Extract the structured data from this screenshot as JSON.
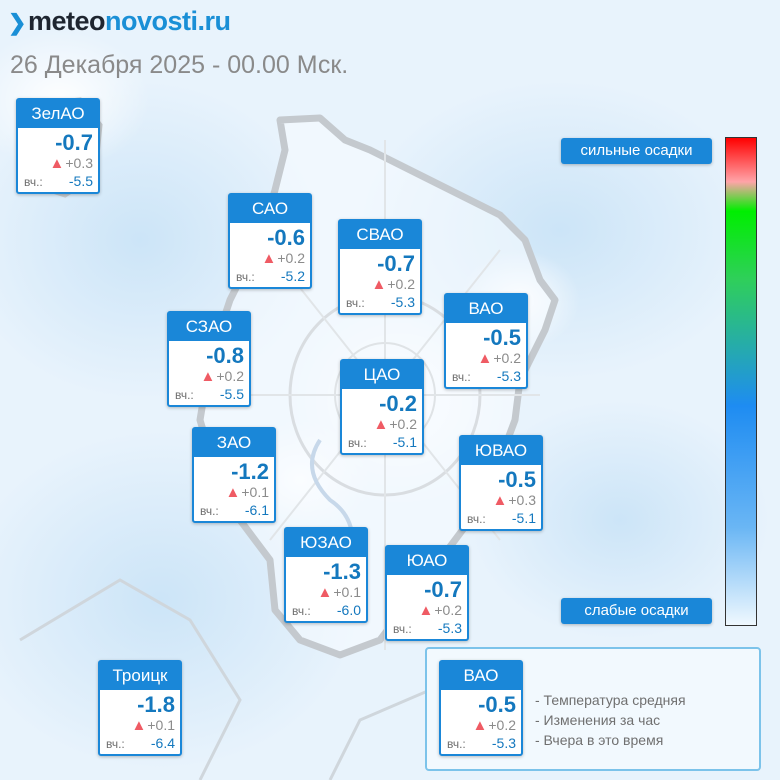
{
  "site": {
    "logo_prefix": "meteo",
    "logo_suffix": "novosti.ru"
  },
  "date_line": "26 Декабря 2025 - 00.00 Мск.",
  "cards": [
    {
      "name": "ЗелАО",
      "temp": "-0.7",
      "change": "+0.3",
      "y_label": "вч.:",
      "yesterday": "-5.5"
    },
    {
      "name": "САО",
      "temp": "-0.6",
      "change": "+0.2",
      "y_label": "вч.:",
      "yesterday": "-5.2"
    },
    {
      "name": "СВАО",
      "temp": "-0.7",
      "change": "+0.2",
      "y_label": "вч.:",
      "yesterday": "-5.3"
    },
    {
      "name": "ВАО",
      "temp": "-0.5",
      "change": "+0.2",
      "y_label": "вч.:",
      "yesterday": "-5.3"
    },
    {
      "name": "СЗАО",
      "temp": "-0.8",
      "change": "+0.2",
      "y_label": "вч.:",
      "yesterday": "-5.5"
    },
    {
      "name": "ЦАО",
      "temp": "-0.2",
      "change": "+0.2",
      "y_label": "вч.:",
      "yesterday": "-5.1"
    },
    {
      "name": "ЗАО",
      "temp": "-1.2",
      "change": "+0.1",
      "y_label": "вч.:",
      "yesterday": "-6.1"
    },
    {
      "name": "ЮВАО",
      "temp": "-0.5",
      "change": "+0.3",
      "y_label": "вч.:",
      "yesterday": "-5.1"
    },
    {
      "name": "ЮЗАО",
      "temp": "-1.3",
      "change": "+0.1",
      "y_label": "вч.:",
      "yesterday": "-6.0"
    },
    {
      "name": "ЮАО",
      "temp": "-0.7",
      "change": "+0.2",
      "y_label": "вч.:",
      "yesterday": "-5.3"
    },
    {
      "name": "Троицк",
      "temp": "-1.8",
      "change": "+0.1",
      "y_label": "вч.:",
      "yesterday": "-6.4"
    }
  ],
  "precip_scale": {
    "high_label": "сильные осадки",
    "low_label": "слабые осадки"
  },
  "legend": {
    "sample": {
      "name": "ВАО",
      "temp": "-0.5",
      "change": "+0.2",
      "y_label": "вч.:",
      "yesterday": "-5.3"
    },
    "lines": [
      "- Температура средняя",
      "- Изменения за час",
      "- Вчера в это время"
    ]
  },
  "colors": {
    "accent": "#1a87d8",
    "temp_text": "#1478be",
    "rise_marker": "#ef5b64",
    "map_background": "#e6f2fc"
  },
  "icons": {
    "change_marker": "triangle-up-icon"
  }
}
